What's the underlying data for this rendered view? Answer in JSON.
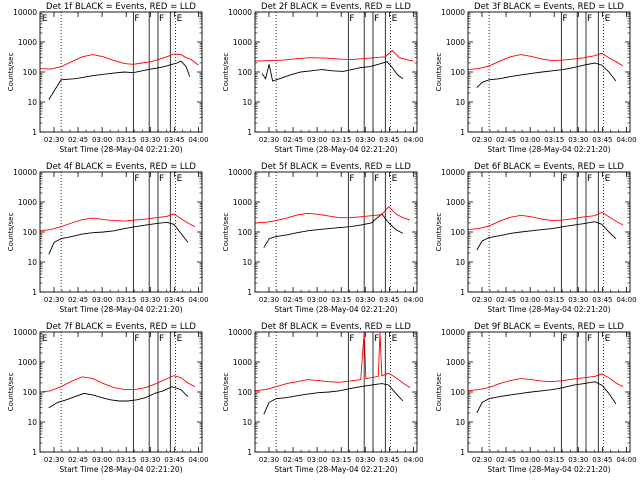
{
  "chart_data": [
    {
      "type": "line",
      "title": "Det 1f BLACK = Events, RED = LLD",
      "xlabel": "Start Time (28-May-04 02:21:20)",
      "ylabel": "Counts/sec",
      "yscale": "log",
      "ylim": [
        1,
        10000
      ],
      "x_ticks": [
        "02:30",
        "02:45",
        "03:00",
        "03:15",
        "03:30",
        "03:45",
        "04:00"
      ],
      "y_ticks": [
        "1",
        "10",
        "100",
        "1000",
        "10000"
      ],
      "flag_labels": [
        "E",
        "F",
        "F",
        "E"
      ],
      "series": [
        {
          "name": "Events",
          "color": "#000000",
          "x": [
            5,
            12,
            20,
            30,
            40,
            48,
            53,
            58,
            63,
            68,
            72,
            75,
            78,
            80,
            83,
            85
          ],
          "y": [
            12,
            55,
            60,
            75,
            90,
            100,
            95,
            110,
            125,
            140,
            160,
            180,
            200,
            230,
            150,
            70
          ]
        },
        {
          "name": "LLD",
          "color": "#ff0000",
          "x": [
            0,
            6,
            12,
            18,
            24,
            30,
            36,
            42,
            48,
            53,
            58,
            63,
            68,
            72,
            76,
            80,
            83,
            86,
            90
          ],
          "y": [
            130,
            125,
            150,
            220,
            320,
            380,
            320,
            240,
            190,
            180,
            200,
            220,
            270,
            320,
            400,
            380,
            300,
            260,
            170
          ]
        }
      ]
    },
    {
      "type": "line",
      "title": "Det 2f BLACK = Events, RED = LLD",
      "xlabel": "Start Time (28-May-04 02:21:20)",
      "ylabel": "Counts/sec",
      "yscale": "log",
      "ylim": [
        1,
        10000
      ],
      "x_ticks": [
        "02:30",
        "02:45",
        "03:00",
        "03:15",
        "03:30",
        "03:45",
        "04:00"
      ],
      "y_ticks": [
        "1",
        "10",
        "100",
        "1000",
        "10000"
      ],
      "flag_labels": [
        "F",
        "F",
        "E"
      ],
      "series": [
        {
          "name": "Events",
          "color": "#000000",
          "x": [
            4,
            6,
            8,
            10,
            14,
            20,
            26,
            32,
            38,
            44,
            50,
            55,
            60,
            65,
            70,
            75,
            78,
            81,
            84
          ],
          "y": [
            90,
            60,
            180,
            50,
            60,
            80,
            100,
            110,
            120,
            110,
            105,
            120,
            140,
            150,
            180,
            220,
            140,
            80,
            60
          ]
        },
        {
          "name": "LLD",
          "color": "#ff0000",
          "x": [
            0,
            8,
            16,
            24,
            32,
            40,
            48,
            55,
            62,
            68,
            74,
            78,
            82,
            86,
            90
          ],
          "y": [
            230,
            240,
            250,
            280,
            300,
            290,
            270,
            260,
            280,
            300,
            320,
            520,
            300,
            260,
            230
          ]
        }
      ]
    },
    {
      "type": "line",
      "title": "Det 3f BLACK = Events, RED = LLD",
      "xlabel": "Start Time (28-May-04 02:21:20)",
      "ylabel": "Counts/sec",
      "yscale": "log",
      "ylim": [
        1,
        10000
      ],
      "x_ticks": [
        "02:30",
        "02:45",
        "03:00",
        "03:15",
        "03:30",
        "03:45",
        "04:00"
      ],
      "y_ticks": [
        "1",
        "10",
        "100",
        "1000",
        "10000"
      ],
      "flag_labels": [
        "F",
        "F",
        "E"
      ],
      "series": [
        {
          "name": "Events",
          "color": "#000000",
          "x": [
            5,
            8,
            12,
            18,
            24,
            30,
            36,
            42,
            48,
            54,
            60,
            66,
            72,
            76,
            80,
            84
          ],
          "y": [
            30,
            45,
            55,
            60,
            70,
            80,
            90,
            100,
            110,
            120,
            140,
            170,
            200,
            170,
            100,
            50
          ]
        },
        {
          "name": "LLD",
          "color": "#ff0000",
          "x": [
            0,
            6,
            12,
            18,
            24,
            30,
            36,
            42,
            48,
            54,
            60,
            66,
            72,
            76,
            80,
            84,
            88
          ],
          "y": [
            120,
            130,
            160,
            230,
            320,
            380,
            330,
            270,
            240,
            250,
            270,
            300,
            350,
            420,
            300,
            220,
            160
          ]
        }
      ]
    },
    {
      "type": "line",
      "title": "Det 4f BLACK = Events, RED = LLD",
      "xlabel": "Start Time (28-May-04 02:21:20)",
      "ylabel": "Counts/sec",
      "yscale": "log",
      "ylim": [
        1,
        10000
      ],
      "x_ticks": [
        "02:30",
        "02:45",
        "03:00",
        "03:15",
        "03:30",
        "03:45",
        "04:00"
      ],
      "y_ticks": [
        "1",
        "10",
        "100",
        "1000",
        "10000"
      ],
      "flag_labels": [
        "F",
        "F",
        "E"
      ],
      "series": [
        {
          "name": "Events",
          "color": "#000000",
          "x": [
            5,
            8,
            12,
            18,
            24,
            30,
            36,
            42,
            48,
            54,
            60,
            66,
            72,
            76,
            80,
            84
          ],
          "y": [
            18,
            45,
            60,
            70,
            85,
            95,
            100,
            110,
            130,
            150,
            170,
            190,
            210,
            180,
            90,
            45
          ]
        },
        {
          "name": "LLD",
          "color": "#ff0000",
          "x": [
            0,
            6,
            12,
            18,
            24,
            30,
            36,
            42,
            48,
            54,
            60,
            66,
            72,
            76,
            80,
            84,
            88
          ],
          "y": [
            110,
            120,
            150,
            200,
            260,
            290,
            260,
            240,
            230,
            250,
            270,
            300,
            330,
            400,
            280,
            200,
            150
          ]
        }
      ]
    },
    {
      "type": "line",
      "title": "Det 5f BLACK = Events, RED = LLD",
      "xlabel": "Start Time (28-May-04 02:21:20)",
      "ylabel": "Counts/sec",
      "yscale": "log",
      "ylim": [
        1,
        10000
      ],
      "x_ticks": [
        "02:30",
        "02:45",
        "03:00",
        "03:15",
        "03:30",
        "03:45",
        "04:00"
      ],
      "y_ticks": [
        "1",
        "10",
        "100",
        "1000",
        "10000"
      ],
      "flag_labels": [
        "F",
        "F",
        "E"
      ],
      "series": [
        {
          "name": "Events",
          "color": "#000000",
          "x": [
            5,
            8,
            12,
            18,
            24,
            30,
            36,
            42,
            48,
            54,
            60,
            66,
            72,
            76,
            80,
            84
          ],
          "y": [
            30,
            60,
            70,
            80,
            95,
            110,
            120,
            130,
            140,
            150,
            170,
            200,
            400,
            200,
            120,
            90
          ]
        },
        {
          "name": "LLD",
          "color": "#ff0000",
          "x": [
            0,
            6,
            12,
            18,
            24,
            30,
            36,
            42,
            48,
            54,
            60,
            66,
            72,
            76,
            80,
            84,
            88
          ],
          "y": [
            200,
            210,
            240,
            290,
            370,
            420,
            390,
            340,
            300,
            300,
            320,
            350,
            380,
            700,
            400,
            300,
            250
          ]
        }
      ]
    },
    {
      "type": "line",
      "title": "Det 6f BLACK = Events, RED = LLD",
      "xlabel": "Start Time (28-May-04 02:21:20)",
      "ylabel": "Counts/sec",
      "yscale": "log",
      "ylim": [
        1,
        10000
      ],
      "x_ticks": [
        "02:30",
        "02:45",
        "03:00",
        "03:15",
        "03:30",
        "03:45",
        "04:00"
      ],
      "y_ticks": [
        "1",
        "10",
        "100",
        "1000",
        "10000"
      ],
      "flag_labels": [
        "F",
        "F",
        "E"
      ],
      "series": [
        {
          "name": "Events",
          "color": "#000000",
          "x": [
            5,
            8,
            12,
            18,
            24,
            30,
            36,
            42,
            48,
            54,
            60,
            66,
            72,
            76,
            80,
            84
          ],
          "y": [
            25,
            50,
            65,
            75,
            90,
            100,
            110,
            120,
            130,
            150,
            170,
            190,
            220,
            180,
            100,
            60
          ]
        },
        {
          "name": "LLD",
          "color": "#ff0000",
          "x": [
            0,
            6,
            12,
            18,
            24,
            30,
            36,
            42,
            48,
            54,
            60,
            66,
            72,
            76,
            80,
            84,
            88
          ],
          "y": [
            120,
            130,
            160,
            230,
            310,
            360,
            320,
            270,
            240,
            250,
            280,
            320,
            350,
            450,
            320,
            230,
            170
          ]
        }
      ]
    },
    {
      "type": "line",
      "title": "Det 7f BLACK = Events, RED = LLD",
      "xlabel": "Start Time (28-May-04 02:21:20)",
      "ylabel": "Counts/sec",
      "yscale": "log",
      "ylim": [
        1,
        10000
      ],
      "x_ticks": [
        "02:30",
        "02:45",
        "03:00",
        "03:15",
        "03:30",
        "03:45",
        "04:00"
      ],
      "y_ticks": [
        "1",
        "10",
        "100",
        "1000",
        "10000"
      ],
      "flag_labels": [
        "E",
        "F",
        "F",
        "E"
      ],
      "series": [
        {
          "name": "Events",
          "color": "#000000",
          "x": [
            5,
            10,
            15,
            20,
            25,
            30,
            35,
            40,
            45,
            50,
            55,
            60,
            65,
            70,
            75,
            80,
            84
          ],
          "y": [
            30,
            45,
            55,
            70,
            90,
            80,
            65,
            55,
            50,
            50,
            55,
            65,
            90,
            110,
            150,
            120,
            70
          ]
        },
        {
          "name": "LLD",
          "color": "#ff0000",
          "x": [
            0,
            6,
            12,
            18,
            24,
            30,
            36,
            42,
            48,
            54,
            60,
            66,
            72,
            76,
            80,
            84,
            88
          ],
          "y": [
            100,
            110,
            150,
            230,
            320,
            280,
            190,
            140,
            120,
            120,
            140,
            190,
            280,
            350,
            300,
            200,
            150
          ]
        }
      ]
    },
    {
      "type": "line",
      "title": "Det 8f BLACK = Events, RED = LLD",
      "xlabel": "Start Time (28-May-04 02:21:20)",
      "ylabel": "Counts/sec",
      "yscale": "log",
      "ylim": [
        1,
        10000
      ],
      "x_ticks": [
        "02:30",
        "02:45",
        "03:00",
        "03:15",
        "03:30",
        "03:45",
        "04:00"
      ],
      "y_ticks": [
        "1",
        "10",
        "100",
        "1000",
        "10000"
      ],
      "flag_labels": [
        "F",
        "F",
        "E"
      ],
      "series": [
        {
          "name": "Events",
          "color": "#000000",
          "x": [
            5,
            8,
            12,
            18,
            24,
            30,
            36,
            42,
            48,
            54,
            60,
            66,
            72,
            76,
            80,
            84
          ],
          "y": [
            18,
            45,
            60,
            65,
            75,
            85,
            95,
            100,
            110,
            130,
            150,
            170,
            190,
            170,
            90,
            50
          ]
        },
        {
          "name": "LLD",
          "color": "#ff0000",
          "x": [
            0,
            6,
            12,
            18,
            24,
            30,
            36,
            42,
            48,
            54,
            60,
            62,
            63,
            66,
            70,
            71,
            72,
            76,
            80,
            84,
            88
          ],
          "y": [
            110,
            120,
            150,
            190,
            220,
            260,
            240,
            220,
            210,
            230,
            260,
            10000,
            280,
            300,
            330,
            10000,
            350,
            420,
            300,
            200,
            140
          ]
        }
      ]
    },
    {
      "type": "line",
      "title": "Det 9f BLACK = Events, RED = LLD",
      "xlabel": "Start Time (28-May-04 02:21:20)",
      "ylabel": "Counts/sec",
      "yscale": "log",
      "ylim": [
        1,
        10000
      ],
      "x_ticks": [
        "02:30",
        "02:45",
        "03:00",
        "03:15",
        "03:30",
        "03:45",
        "04:00"
      ],
      "y_ticks": [
        "1",
        "10",
        "100",
        "1000",
        "10000"
      ],
      "flag_labels": [
        "F",
        "F",
        "E"
      ],
      "series": [
        {
          "name": "Events",
          "color": "#000000",
          "x": [
            5,
            8,
            12,
            18,
            24,
            30,
            36,
            42,
            48,
            54,
            60,
            66,
            72,
            76,
            80,
            84
          ],
          "y": [
            20,
            45,
            60,
            70,
            80,
            90,
            100,
            110,
            120,
            140,
            170,
            190,
            220,
            170,
            90,
            40
          ]
        },
        {
          "name": "LLD",
          "color": "#ff0000",
          "x": [
            0,
            6,
            12,
            18,
            24,
            30,
            36,
            42,
            48,
            54,
            60,
            66,
            72,
            76,
            80,
            84,
            88
          ],
          "y": [
            110,
            120,
            140,
            190,
            240,
            280,
            260,
            230,
            220,
            240,
            270,
            300,
            330,
            400,
            300,
            200,
            150
          ]
        }
      ]
    }
  ]
}
